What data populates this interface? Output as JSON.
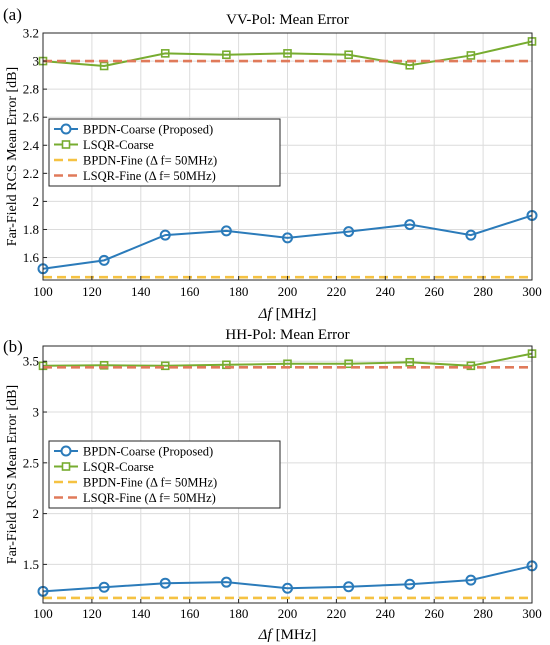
{
  "chart_data": [
    {
      "type": "line",
      "panel_label": "(a)",
      "title": "VV-Pol: Mean Error",
      "xlabel_symbol": "Δf",
      "xlabel_unit": "[MHz]",
      "ylabel": "Far-Field RCS Mean Error [dB]",
      "x": [
        100,
        125,
        150,
        175,
        200,
        225,
        250,
        275,
        300
      ],
      "xlim": [
        100,
        300
      ],
      "ylim": [
        1.44,
        3.2
      ],
      "xticks": [
        100,
        120,
        140,
        160,
        180,
        200,
        220,
        240,
        260,
        280,
        300
      ],
      "yticks": [
        1.6,
        1.8,
        2,
        2.2,
        2.4,
        2.6,
        2.8,
        3,
        3.2
      ],
      "ytick_labels": [
        "1.6",
        "1.8",
        "2",
        "2.2",
        "2.4",
        "2.6",
        "2.8",
        "3",
        "3.2"
      ],
      "grid": true,
      "legend_position": "middle-left",
      "series": [
        {
          "name": "BPDN-Coarse (Proposed)",
          "color": "#2b7bba",
          "marker": "circle",
          "style": "solid",
          "values": [
            1.52,
            1.58,
            1.76,
            1.79,
            1.74,
            1.785,
            1.835,
            1.76,
            1.9
          ]
        },
        {
          "name": "LSQR-Coarse",
          "color": "#77ac30",
          "marker": "square",
          "style": "solid",
          "values": [
            3.0,
            2.965,
            3.055,
            3.045,
            3.055,
            3.045,
            2.97,
            3.04,
            3.14
          ]
        },
        {
          "name": "BPDN-Fine (Δ f= 50MHz)",
          "color": "#f5c242",
          "marker": "none",
          "style": "dashed",
          "values": [
            1.46,
            1.46,
            1.46,
            1.46,
            1.46,
            1.46,
            1.46,
            1.46,
            1.46
          ]
        },
        {
          "name": "LSQR-Fine (Δ f= 50MHz)",
          "color": "#e07a5a",
          "marker": "none",
          "style": "dashed",
          "values": [
            3.0,
            3.0,
            3.0,
            3.0,
            3.0,
            3.0,
            3.0,
            3.0,
            3.0
          ]
        }
      ]
    },
    {
      "type": "line",
      "panel_label": "(b)",
      "title": "HH-Pol: Mean Error",
      "xlabel_symbol": "Δf",
      "xlabel_unit": "[MHz]",
      "ylabel": "Far-Field RCS Mean Error [dB]",
      "x": [
        100,
        125,
        150,
        175,
        200,
        225,
        250,
        275,
        300
      ],
      "xlim": [
        100,
        300
      ],
      "ylim": [
        1.12,
        3.65
      ],
      "xticks": [
        100,
        120,
        140,
        160,
        180,
        200,
        220,
        240,
        260,
        280,
        300
      ],
      "yticks": [
        1.5,
        2,
        2.5,
        3,
        3.5
      ],
      "ytick_labels": [
        "1.5",
        "2",
        "2.5",
        "3",
        "3.5"
      ],
      "grid": true,
      "legend_position": "middle-left",
      "series": [
        {
          "name": "BPDN-Coarse (Proposed)",
          "color": "#2b7bba",
          "marker": "circle",
          "style": "solid",
          "values": [
            1.235,
            1.275,
            1.315,
            1.325,
            1.265,
            1.28,
            1.305,
            1.345,
            1.485
          ]
        },
        {
          "name": "LSQR-Coarse",
          "color": "#77ac30",
          "marker": "square",
          "style": "solid",
          "values": [
            3.455,
            3.46,
            3.455,
            3.465,
            3.475,
            3.475,
            3.49,
            3.455,
            3.575
          ]
        },
        {
          "name": "BPDN-Fine (Δ f= 50MHz)",
          "color": "#f5c242",
          "marker": "none",
          "style": "dashed",
          "values": [
            1.17,
            1.17,
            1.17,
            1.17,
            1.17,
            1.17,
            1.17,
            1.17,
            1.17
          ]
        },
        {
          "name": "LSQR-Fine (Δ f= 50MHz)",
          "color": "#e07a5a",
          "marker": "none",
          "style": "dashed",
          "values": [
            3.44,
            3.44,
            3.44,
            3.44,
            3.44,
            3.44,
            3.44,
            3.44,
            3.44
          ]
        }
      ]
    }
  ]
}
